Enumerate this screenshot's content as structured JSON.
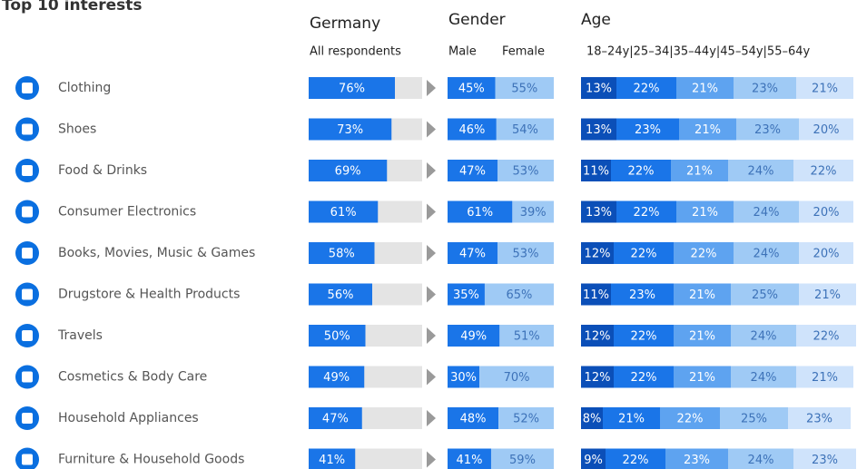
{
  "title": "Top 10 interests",
  "germany": {
    "heading": "Germany",
    "subheading": "All respondents"
  },
  "gender": {
    "heading": "Gender",
    "labels": [
      "Male",
      "Female"
    ]
  },
  "age": {
    "heading": "Age",
    "labels": "18–24y|25–34|35–44y|45–54y|55–64y"
  },
  "colors": {
    "all": "#1a75e8",
    "track": "#e4e4e4",
    "arrow": "#9a9a9a",
    "icon": "#0a6fe0",
    "gender": [
      "#1a75e8",
      "#9fcaf5"
    ],
    "age": [
      "#0b4fb8",
      "#1a75e8",
      "#5ea3f0",
      "#9fcaf5",
      "#cfe3fb"
    ]
  },
  "rows": [
    {
      "name": "Clothing",
      "all": 76,
      "all_label": "76%",
      "gender": [
        45,
        55
      ],
      "gender_labels": [
        "45%",
        "55%"
      ],
      "age": [
        13,
        22,
        21,
        23,
        21
      ],
      "age_labels": [
        "13%",
        "22%",
        "21%",
        "23%",
        "21%"
      ]
    },
    {
      "name": "Shoes",
      "all": 73,
      "all_label": "73%",
      "gender": [
        46,
        54
      ],
      "gender_labels": [
        "46%",
        "54%"
      ],
      "age": [
        13,
        23,
        21,
        23,
        20
      ],
      "age_labels": [
        "13%",
        "23%",
        "21%",
        "23%",
        "20%"
      ]
    },
    {
      "name": "Food & Drinks",
      "all": 69,
      "all_label": "69%",
      "gender": [
        47,
        53
      ],
      "gender_labels": [
        "47%",
        "53%"
      ],
      "age": [
        11,
        22,
        21,
        24,
        22
      ],
      "age_labels": [
        "11%",
        "22%",
        "21%",
        "24%",
        "22%"
      ]
    },
    {
      "name": "Consumer Electronics",
      "all": 61,
      "all_label": "61%",
      "gender": [
        61,
        39
      ],
      "gender_labels": [
        "61%",
        "39%"
      ],
      "age": [
        13,
        22,
        21,
        24,
        20
      ],
      "age_labels": [
        "13%",
        "22%",
        "21%",
        "24%",
        "20%"
      ]
    },
    {
      "name": "Books, Movies, Music & Games",
      "all": 58,
      "all_label": "58%",
      "gender": [
        47,
        53
      ],
      "gender_labels": [
        "47%",
        "53%"
      ],
      "age": [
        12,
        22,
        22,
        24,
        20
      ],
      "age_labels": [
        "12%",
        "22%",
        "22%",
        "24%",
        "20%"
      ]
    },
    {
      "name": "Drugstore & Health Products",
      "all": 56,
      "all_label": "56%",
      "gender": [
        35,
        65
      ],
      "gender_labels": [
        "35%",
        "65%"
      ],
      "age": [
        11,
        23,
        21,
        25,
        21
      ],
      "age_labels": [
        "11%",
        "23%",
        "21%",
        "25%",
        "21%"
      ]
    },
    {
      "name": "Travels",
      "all": 50,
      "all_label": "50%",
      "gender": [
        49,
        51
      ],
      "gender_labels": [
        "49%",
        "51%"
      ],
      "age": [
        12,
        22,
        21,
        24,
        22
      ],
      "age_labels": [
        "12%",
        "22%",
        "21%",
        "24%",
        "22%"
      ]
    },
    {
      "name": "Cosmetics & Body Care",
      "all": 49,
      "all_label": "49%",
      "gender": [
        30,
        70
      ],
      "gender_labels": [
        "30%",
        "70%"
      ],
      "age": [
        12,
        22,
        21,
        24,
        21
      ],
      "age_labels": [
        "12%",
        "22%",
        "21%",
        "24%",
        "21%"
      ]
    },
    {
      "name": "Household Appliances",
      "all": 47,
      "all_label": "47%",
      "gender": [
        48,
        52
      ],
      "gender_labels": [
        "48%",
        "52%"
      ],
      "age": [
        8,
        21,
        22,
        25,
        23
      ],
      "age_labels": [
        "8%",
        "21%",
        "22%",
        "25%",
        "23%"
      ]
    },
    {
      "name": "Furniture & Household Goods",
      "all": 41,
      "all_label": "41%",
      "gender": [
        41,
        59
      ],
      "gender_labels": [
        "41%",
        "59%"
      ],
      "age": [
        9,
        22,
        23,
        24,
        23
      ],
      "age_labels": [
        "9%",
        "22%",
        "23%",
        "24%",
        "23%"
      ]
    }
  ]
}
